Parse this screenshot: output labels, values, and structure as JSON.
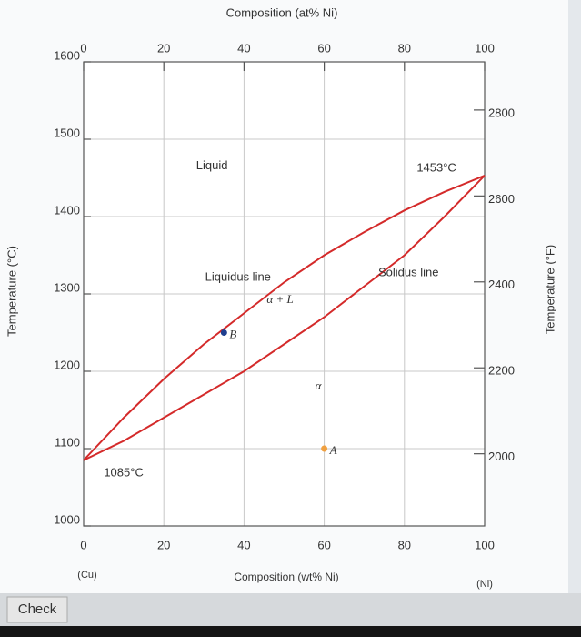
{
  "chart_data": {
    "type": "line",
    "x_top_label": "Composition (at% Ni)",
    "xlabel": "Composition (wt% Ni)",
    "ylabel": "Temperature (°C)",
    "y2label": "Temperature (°F)",
    "x_end_labels": [
      "(Cu)",
      "(Ni)"
    ],
    "x": [
      0,
      10,
      20,
      30,
      40,
      50,
      60,
      70,
      80,
      90,
      100
    ],
    "series": [
      {
        "name": "Liquidus line",
        "color": "#d42a2a",
        "values": [
          1085,
          1140,
          1190,
          1235,
          1275,
          1315,
          1350,
          1380,
          1408,
          1432,
          1453
        ]
      },
      {
        "name": "Solidus line",
        "color": "#d42a2a",
        "values": [
          1085,
          1110,
          1140,
          1170,
          1200,
          1235,
          1270,
          1310,
          1350,
          1400,
          1453
        ]
      }
    ],
    "points": [
      {
        "name": "B",
        "x": 35,
        "y": 1250,
        "color": "#1f3f8f"
      },
      {
        "name": "A",
        "x": 60,
        "y": 1100,
        "color": "#f0a040"
      }
    ],
    "annotations": [
      "Liquid",
      "1453°C",
      "1085°C",
      "α + L",
      "α"
    ],
    "xlim": [
      0,
      100
    ],
    "xticks": [
      0,
      20,
      40,
      60,
      80,
      100
    ],
    "x2lim": [
      0,
      100
    ],
    "x2ticks": [
      0,
      20,
      40,
      60,
      80,
      100
    ],
    "ylim": [
      1000,
      1600
    ],
    "yticks": [
      1000,
      1100,
      1200,
      1300,
      1400,
      1500,
      1600
    ],
    "y2lim": [
      1832,
      2912
    ],
    "y2ticks": [
      2000,
      2200,
      2400,
      2600,
      2800
    ],
    "grid": true
  },
  "button": "Check"
}
